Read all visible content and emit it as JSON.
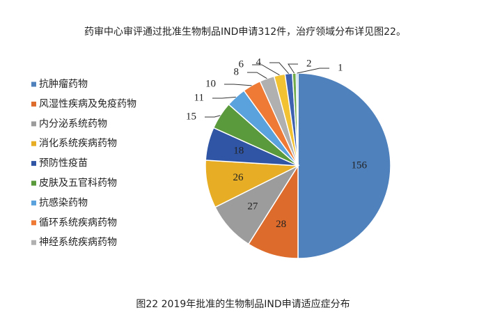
{
  "chart_data": {
    "type": "pie",
    "title": "药审中心审评通过批准生物制品IND申请312件，治疗领域分布详见图22。",
    "caption": "图22 2019年批准的生物制品IND申请适应症分布",
    "categories": [
      "抗肿瘤药物",
      "风湿性疾病及免疫药物",
      "内分泌系统药物",
      "消化系统疾病药物",
      "预防性疫苗",
      "皮肤及五官科药物",
      "抗感染药物",
      "循环系统疾病药物",
      "神经系统疾病药物",
      null,
      null,
      null,
      null
    ],
    "values": [
      156,
      28,
      27,
      26,
      18,
      15,
      11,
      10,
      8,
      6,
      4,
      2,
      1
    ],
    "colors": [
      "#4f81bd",
      "#dd6b2c",
      "#9c9c9c",
      "#e6ad25",
      "#2f55a4",
      "#5b9a3c",
      "#5aa2dd",
      "#ef7a35",
      "#b0b0b0",
      "#f2c232",
      "#3e62b0",
      "#6faa4a",
      "#8fc0e8"
    ],
    "legend": "left"
  }
}
